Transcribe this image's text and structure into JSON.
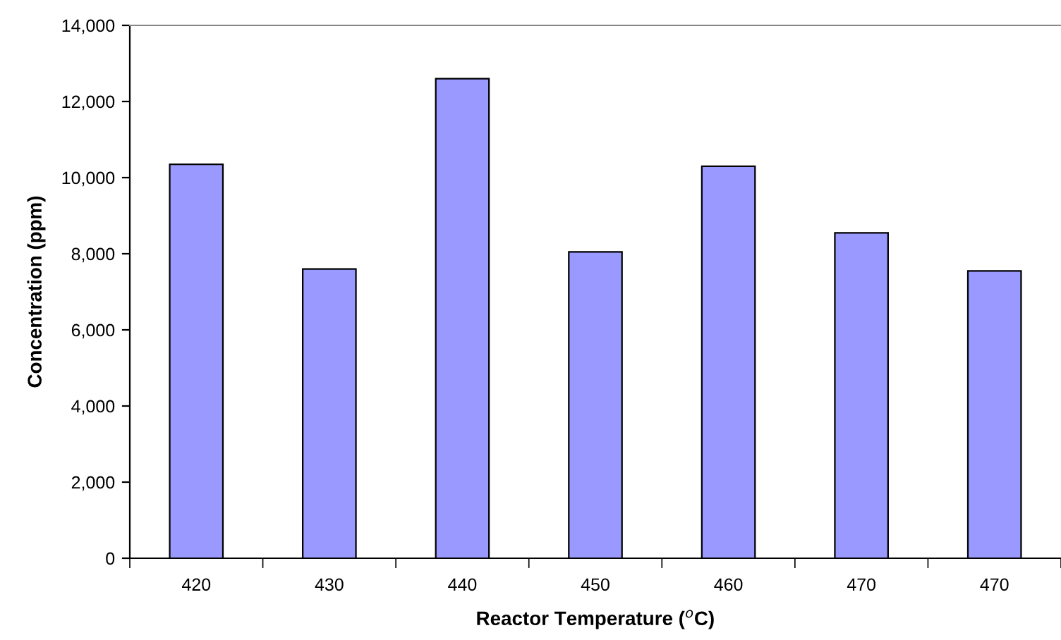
{
  "chart_data": {
    "type": "bar",
    "xlabel": "Reactor Temperature ($^{o}$C)",
    "ylabel": "Concentration (ppm)",
    "categories": [
      "420",
      "430",
      "440",
      "450",
      "460",
      "470",
      "470"
    ],
    "values": [
      10350,
      7600,
      12600,
      8050,
      10300,
      8550,
      7550
    ],
    "color": "#9999ff",
    "ylim": [
      0,
      14000
    ],
    "yticks": [
      {
        "value": 0,
        "label": "0"
      },
      {
        "value": 2000,
        "label": "2,000"
      },
      {
        "value": 4000,
        "label": "4,000"
      },
      {
        "value": 6000,
        "label": "6,000"
      },
      {
        "value": 8000,
        "label": "8,000"
      },
      {
        "value": 10000,
        "label": "10,000"
      },
      {
        "value": 12000,
        "label": "12,000"
      },
      {
        "value": 14000,
        "label": "14,000"
      }
    ],
    "grid": false
  }
}
